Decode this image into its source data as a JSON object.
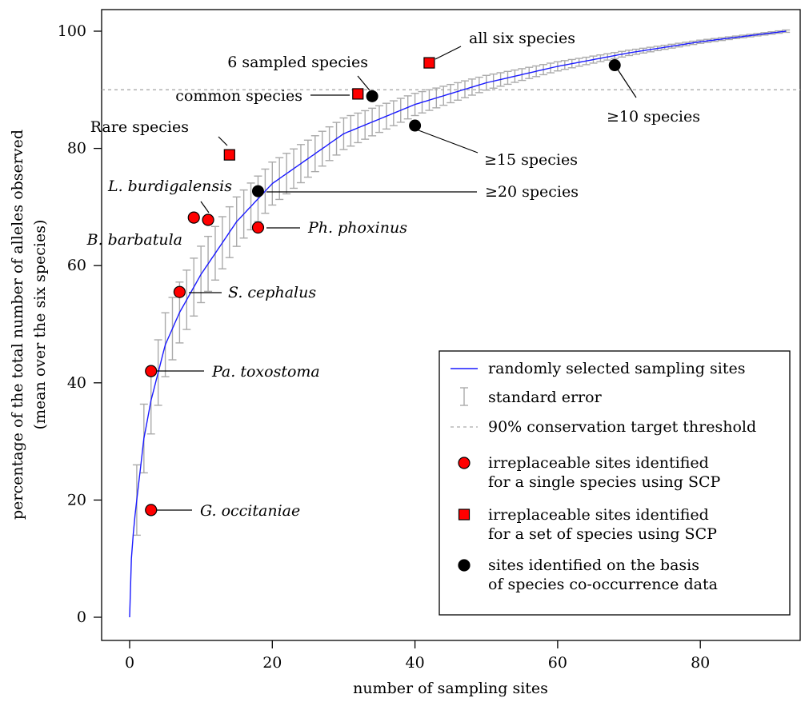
{
  "chart_data": {
    "type": "line",
    "title": "",
    "xlabel": "number of sampling sites",
    "ylabel": "percentage of the total number of alleles observed",
    "ylabel2": "(mean over the six species)",
    "xlim": [
      0,
      92
    ],
    "ylim": [
      0,
      100
    ],
    "xticks": [
      0,
      20,
      40,
      60,
      80
    ],
    "yticks": [
      0,
      20,
      40,
      60,
      80,
      100
    ],
    "threshold": 90,
    "curve": {
      "name": "randomly selected sampling sites",
      "color": "#1a1aff",
      "x_end": 92,
      "note_shape": "rarefaction curve passing through (1,20), (3,37), (5,46.5), (10,58.5), (20,74), (40,87.5), (60,94), (92,100)"
    },
    "standard_error": {
      "half_width_at_x1": 6,
      "half_width_at_x92": 0.2
    },
    "points": [
      {
        "x": 3,
        "y": 18.3,
        "shape": "circle",
        "color": "#ff0000",
        "label": "G. occitaniae",
        "italic": true
      },
      {
        "x": 3,
        "y": 42.0,
        "shape": "circle",
        "color": "#ff0000",
        "label": "Pa. toxostoma",
        "italic": true
      },
      {
        "x": 7,
        "y": 55.5,
        "shape": "circle",
        "color": "#ff0000",
        "label": "S. cephalus",
        "italic": true
      },
      {
        "x": 9,
        "y": 68.2,
        "shape": "circle",
        "color": "#ff0000",
        "label": "B. barbatula",
        "italic": true
      },
      {
        "x": 11,
        "y": 67.8,
        "shape": "circle",
        "color": "#ff0000",
        "label": "L. burdigalensis",
        "italic": true
      },
      {
        "x": 18,
        "y": 66.5,
        "shape": "circle",
        "color": "#ff0000",
        "label": "Ph. phoxinus",
        "italic": true
      },
      {
        "x": 14,
        "y": 78.9,
        "shape": "square",
        "color": "#ff0000",
        "label": "Rare species",
        "italic": false
      },
      {
        "x": 32,
        "y": 89.3,
        "shape": "square",
        "color": "#ff0000",
        "label": "common species",
        "italic": false
      },
      {
        "x": 42,
        "y": 94.6,
        "shape": "square",
        "color": "#ff0000",
        "label": "all six species",
        "italic": false
      },
      {
        "x": 34,
        "y": 88.9,
        "shape": "circle",
        "color": "#000000",
        "label": "6 sampled species",
        "italic": false
      },
      {
        "x": 18,
        "y": 72.7,
        "shape": "circle",
        "color": "#000000",
        "label": "≥20 species",
        "italic": false
      },
      {
        "x": 40,
        "y": 83.9,
        "shape": "circle",
        "color": "#000000",
        "label": "≥15 species",
        "italic": false
      },
      {
        "x": 68,
        "y": 94.2,
        "shape": "circle",
        "color": "#000000",
        "label": "≥10 species",
        "italic": false
      }
    ],
    "legend": {
      "position": "bottom-right",
      "entries": [
        {
          "kind": "line",
          "label": "randomly selected sampling sites"
        },
        {
          "kind": "error",
          "label": "standard error"
        },
        {
          "kind": "dashed",
          "label": "90% conservation target threshold"
        },
        {
          "kind": "circle",
          "color": "#ff0000",
          "label": "irreplaceable sites identified",
          "label2": "for a single species using SCP"
        },
        {
          "kind": "square",
          "color": "#ff0000",
          "label": "irreplaceable sites identified",
          "label2": "for a set of species using SCP"
        },
        {
          "kind": "circle",
          "color": "#000000",
          "label": "sites identified on the basis",
          "label2": "of species co-occurrence data"
        }
      ]
    }
  }
}
